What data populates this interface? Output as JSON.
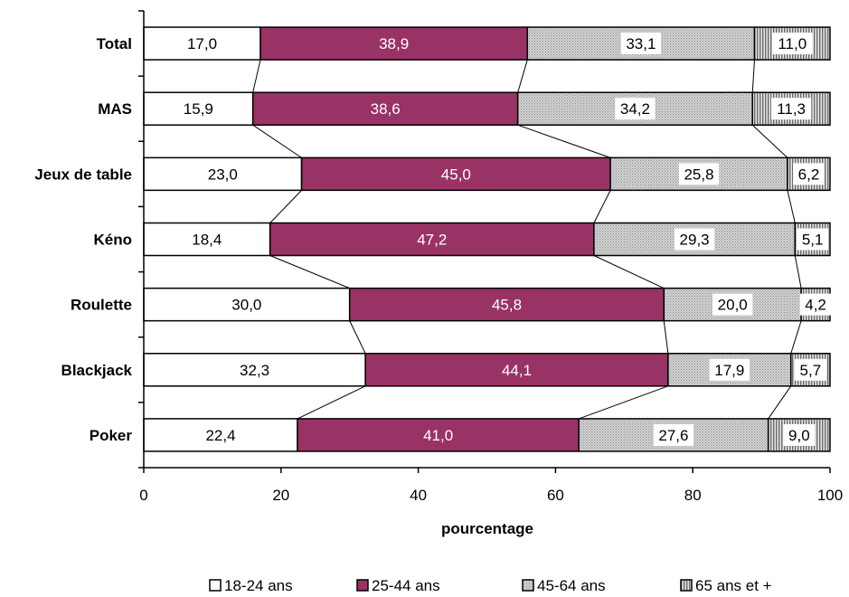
{
  "chart_data": {
    "type": "bar",
    "stacked": true,
    "orientation": "horizontal",
    "categories": [
      "Total",
      "MAS",
      "Jeux de table",
      "Kéno",
      "Roulette",
      "Blackjack",
      "Poker"
    ],
    "series": [
      {
        "name": "18-24 ans",
        "values": [
          17.0,
          15.9,
          23.0,
          18.4,
          30.0,
          32.3,
          22.4
        ],
        "labels": [
          "17,0",
          "15,9",
          "23,0",
          "18,4",
          "30,0",
          "32,3",
          "22,4"
        ],
        "color": "#ffffff",
        "pattern": "none"
      },
      {
        "name": "25-44 ans",
        "values": [
          38.9,
          38.6,
          45.0,
          47.2,
          45.8,
          44.1,
          41.0
        ],
        "labels": [
          "38,9",
          "38,6",
          "45,0",
          "47,2",
          "45,8",
          "44,1",
          "41,0"
        ],
        "color": "#993366",
        "pattern": "none"
      },
      {
        "name": "45-64 ans",
        "values": [
          33.1,
          34.2,
          25.8,
          29.3,
          20.0,
          17.9,
          27.6
        ],
        "labels": [
          "33,1",
          "34,2",
          "25,8",
          "29,3",
          "20,0",
          "17,9",
          "27,6"
        ],
        "color": "#c8c8c8",
        "pattern": "fine-dots"
      },
      {
        "name": "65 ans et +",
        "values": [
          11.0,
          11.3,
          6.2,
          5.1,
          4.2,
          5.7,
          9.0
        ],
        "labels": [
          "11,0",
          "11,3",
          "6,2",
          "5,1",
          "4,2",
          "5,7",
          "9,0"
        ],
        "color": "#a0a0a0",
        "pattern": "vertical-stripes"
      }
    ],
    "xlabel": "pourcentage",
    "xlim": [
      0,
      100
    ],
    "xticks": [
      "0",
      "20",
      "40",
      "60",
      "80",
      "100"
    ],
    "grid": false,
    "series_lines": true,
    "legend_position": "bottom"
  }
}
